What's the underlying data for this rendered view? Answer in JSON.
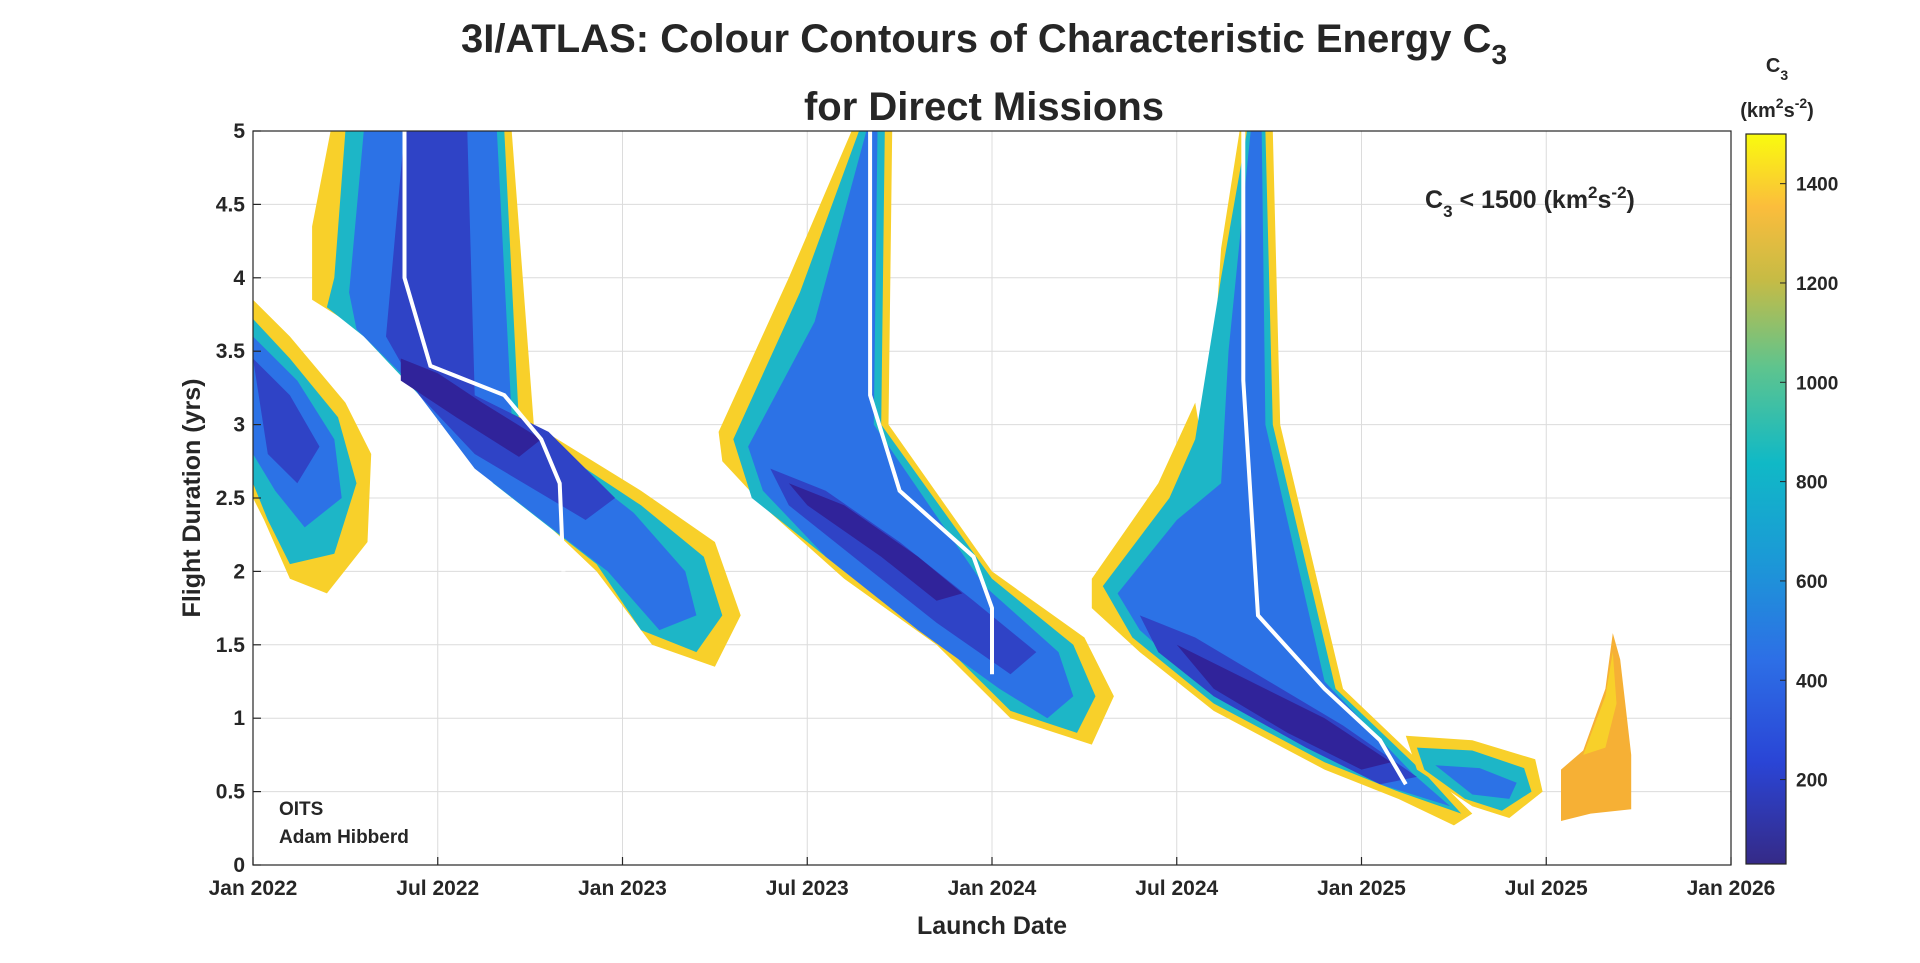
{
  "chart_data": {
    "type": "heatmap",
    "title_line1": "3I/ATLAS: Colour Contours of Characteristic Energy C",
    "title_line1_sub": "3",
    "title_line2": "for Direct Missions",
    "xlabel": "Launch Date",
    "ylabel": "Flight Duration (yrs)",
    "x_ticks": [
      "Jan 2022",
      "Jul 2022",
      "Jan 2023",
      "Jul 2023",
      "Jan 2024",
      "Jul 2024",
      "Jan 2025",
      "Jul 2025",
      "Jan 2026"
    ],
    "xlim_years": [
      2022.0,
      2026.0
    ],
    "y_ticks": [
      "0",
      "0.5",
      "1",
      "1.5",
      "2",
      "2.5",
      "3",
      "3.5",
      "4",
      "4.5",
      "5"
    ],
    "ylim": [
      0,
      5
    ],
    "grid": true,
    "colorbar": {
      "title_main": "C",
      "title_sub": "3",
      "unit_text": "(km",
      "unit_sup1": "2",
      "unit_mid": "s",
      "unit_sup2": "-2",
      "unit_end": ")",
      "range": [
        30,
        1500
      ],
      "ticks": [
        "200",
        "400",
        "600",
        "800",
        "1000",
        "1200",
        "1400"
      ],
      "tick_values": [
        200,
        400,
        600,
        800,
        1000,
        1200,
        1400
      ],
      "colormap": "parula"
    },
    "annotation": {
      "pre": "C",
      "sub": "3",
      "mid": " < 1500 (km",
      "sup1": "2",
      "s": "s",
      "sup2": "-2",
      "end": ")",
      "position": "top-right"
    },
    "credit_line1": "OITS",
    "credit_line2": "Adam Hibberd",
    "regions": [
      {
        "name": "oval-2022",
        "launch": [
          2022.0,
          2022.32
        ],
        "duration": [
          1.85,
          3.85
        ],
        "c3_min": 50
      },
      {
        "name": "band-2022",
        "launch": [
          2022.1,
          2023.33
        ],
        "duration": [
          1.35,
          5.0
        ],
        "c3_min": 40
      },
      {
        "name": "band-2023",
        "launch": [
          2023.25,
          2024.33
        ],
        "duration": [
          0.8,
          5.0
        ],
        "c3_min": 30
      },
      {
        "name": "band-2024",
        "launch": [
          2024.25,
          2025.3
        ],
        "duration": [
          0.25,
          5.0
        ],
        "c3_min": 30
      },
      {
        "name": "lobe-2025",
        "launch": [
          2025.12,
          2025.49
        ],
        "duration": [
          0.3,
          0.9
        ],
        "c3_min": 200
      },
      {
        "name": "spike-late-2025",
        "launch": [
          2025.53,
          2025.73
        ],
        "duration": [
          0.3,
          1.6
        ],
        "c3_min": 1200
      }
    ]
  }
}
